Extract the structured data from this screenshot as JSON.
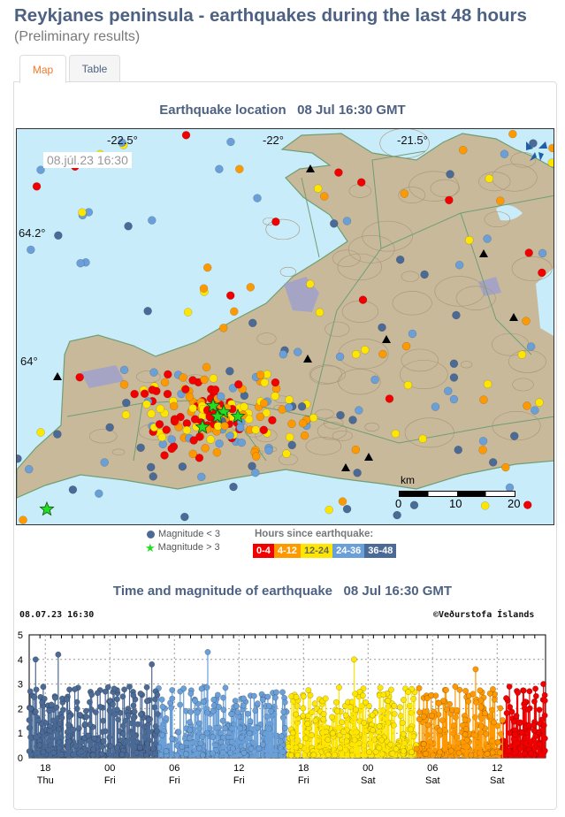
{
  "header": {
    "title": "Reykjanes peninsula - earthquakes during the last 48 hours",
    "subtitle": "(Preliminary results)"
  },
  "tabs": [
    {
      "label": "Map",
      "active": true
    },
    {
      "label": "Table",
      "active": false
    }
  ],
  "map": {
    "title": "Earthquake location   08 Jul 16:30 GMT",
    "timestamp": "08.júl.23  16:30",
    "lon_labels": [
      "-22.5°",
      "-22°",
      "-21.5°"
    ],
    "lat_labels": [
      "64.2°",
      "64°"
    ],
    "scale": {
      "unit": "km",
      "ticks": [
        "0",
        "10",
        "20"
      ]
    },
    "colors": {
      "sea": "#c9ecfa",
      "land": "#c8b99a",
      "roads": "#6f9e74"
    },
    "logo": "vedurstofa-logo"
  },
  "legend": {
    "magnitude_small": "Magnitude < 3",
    "magnitude_large": "Magnitude > 3",
    "hours_title": "Hours since earthquake:",
    "hours": [
      {
        "label": "0-4",
        "color": "#f20000"
      },
      {
        "label": "4-12",
        "color": "#ff9900"
      },
      {
        "label": "12-24",
        "color": "#ffe600"
      },
      {
        "label": "24-36",
        "color": "#6a9fd8"
      },
      {
        "label": "36-48",
        "color": "#4b6a96"
      }
    ]
  },
  "timeline": {
    "title": "Time and magnitude of earthquake   08 Jul 16:30 GMT",
    "stamp": "08.07.23 16:30",
    "credit": "©Veðurstofa Íslands"
  },
  "chart_data": {
    "type": "scatter",
    "title": "Time and magnitude of earthquake   08 Jul 16:30 GMT",
    "xlabel": "",
    "ylabel": "",
    "xlim": [
      "Thu 16:30",
      "Sat 16:30"
    ],
    "ylim": [
      0,
      5
    ],
    "yticks": [
      "0",
      "1",
      "2",
      "3",
      "4",
      "5"
    ],
    "xticks": [
      {
        "hour": "18",
        "day": "Thu"
      },
      {
        "hour": "00",
        "day": "Fri"
      },
      {
        "hour": "06",
        "day": "Fri"
      },
      {
        "hour": "12",
        "day": "Fri"
      },
      {
        "hour": "18",
        "day": "Fri"
      },
      {
        "hour": "00",
        "day": "Sat"
      },
      {
        "hour": "06",
        "day": "Sat"
      },
      {
        "hour": "12",
        "day": "Sat"
      }
    ],
    "grid": true,
    "marker_style": "stem",
    "color_by": "hours since earthquake",
    "notable_events": [
      {
        "time_h": 0.6,
        "magnitude": 4.0
      },
      {
        "time_h": 2.7,
        "magnitude": 4.2
      },
      {
        "time_h": 11.4,
        "magnitude": 3.8
      },
      {
        "time_h": 16.6,
        "magnitude": 4.3
      },
      {
        "time_h": 30.2,
        "magnitude": 4.0
      },
      {
        "time_h": 41.5,
        "magnitude": 3.6
      },
      {
        "time_h": 47.8,
        "magnitude": 3.0
      }
    ]
  }
}
